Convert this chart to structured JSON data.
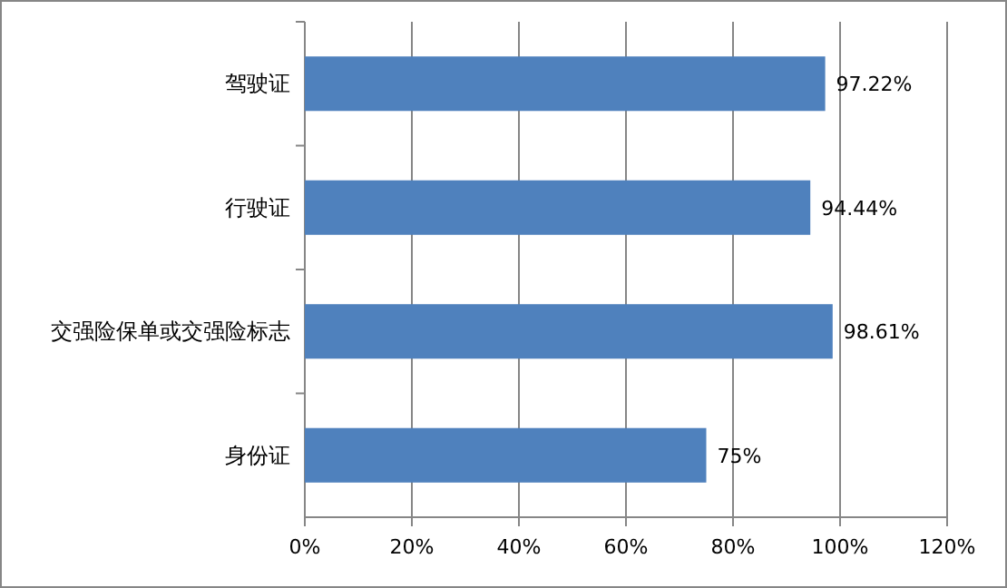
{
  "chart_data": {
    "type": "bar",
    "orientation": "horizontal",
    "categories": [
      "驾驶证",
      "行驶证",
      "交强险保单或交强险标志",
      "身份证"
    ],
    "values": [
      97.22,
      94.44,
      98.61,
      75
    ],
    "value_labels": [
      "97.22%",
      "94.44%",
      "98.61%",
      "75%"
    ],
    "color": "#4f81bd",
    "xlim": [
      0,
      120
    ],
    "xticks": [
      {
        "value": 0,
        "label": "0%"
      },
      {
        "value": 20,
        "label": "20%"
      },
      {
        "value": 40,
        "label": "40%"
      },
      {
        "value": 60,
        "label": "60%"
      },
      {
        "value": 80,
        "label": "80%"
      },
      {
        "value": 100,
        "label": "100%"
      },
      {
        "value": 120,
        "label": "120%"
      }
    ],
    "grid": "x"
  }
}
